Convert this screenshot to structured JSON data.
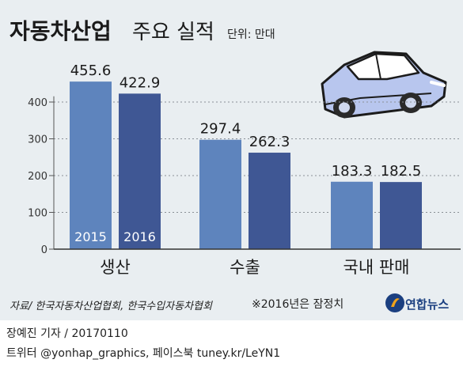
{
  "title": "자동차산업",
  "subtitle": "주요 실적",
  "unit": "단위: 만대",
  "source": "자료/ 한국자동차산업협회, 한국수입자동차협회",
  "note": "※2016년은 잠정치",
  "logo_text": "연합뉴스",
  "footer": {
    "credit": "장예진 기자 / 20170110",
    "sns": "트위터 @yonhap_graphics, 페이스북 tuney.kr/LeYN1"
  },
  "colors": {
    "y2015": "#5e84bd",
    "y2016": "#3f5794",
    "background": "#e9eef1"
  },
  "illustration": "car-icon",
  "chart_data": {
    "type": "bar",
    "categories": [
      "생산",
      "수출",
      "국내 판매"
    ],
    "series": [
      {
        "name": "2015",
        "values": [
          455.6,
          297.4,
          183.3
        ]
      },
      {
        "name": "2016",
        "values": [
          422.9,
          262.3,
          182.5
        ]
      }
    ],
    "value_labels": [
      [
        "455.6",
        "297.4",
        "183.3"
      ],
      [
        "422.9",
        "262.3",
        "182.5"
      ]
    ],
    "yticks": [
      "0",
      "100",
      "200",
      "300",
      "400"
    ],
    "ylim": [
      0,
      480
    ],
    "xlabel": "",
    "ylabel": "",
    "grid": true,
    "legend": "inside-first-group-bars"
  }
}
